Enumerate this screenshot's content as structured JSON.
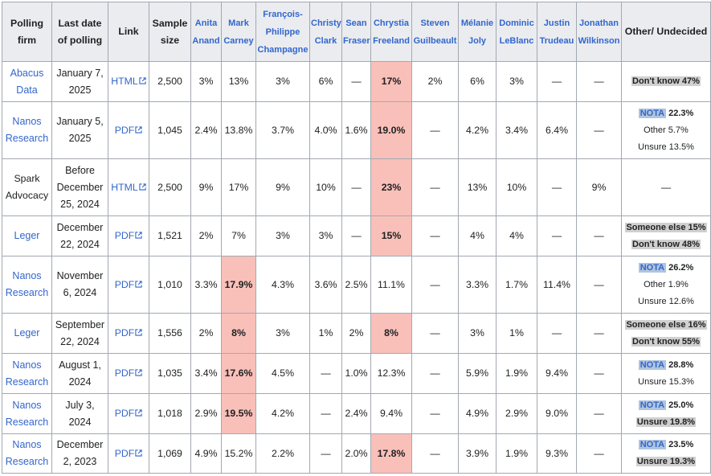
{
  "headers": {
    "firm": "Polling firm",
    "date": "Last date of polling",
    "link": "Link",
    "sample": "Sample size",
    "other": "Other/ Undecided",
    "candidates": [
      "Anita Anand",
      "Mark Carney",
      "François-Philippe Champagne",
      "Christy Clark",
      "Sean Fraser",
      "Chrystia Freeland",
      "Steven Guilbeault",
      "Mélanie Joly",
      "Dominic LeBlanc",
      "Justin Trudeau",
      "Jonathan Wilkinson"
    ]
  },
  "colors": {
    "highlight": "#f9c0b9",
    "header": "#eaecf0",
    "link": "#3366cc",
    "border": "#a2a9b1",
    "nota_bg": "#b0c4de",
    "grey_bg": "#d0d0d0"
  },
  "icons": {
    "external_link": "external-link-icon"
  },
  "rows": [
    {
      "firm": "Abacus Data",
      "firm_link": true,
      "date": "January 7, 2025",
      "link": "HTML",
      "sample": "2,500",
      "values": [
        "3%",
        "13%",
        "3%",
        "6%",
        "—",
        "17%",
        "2%",
        "6%",
        "3%",
        "—",
        "—"
      ],
      "hi": [
        5
      ],
      "other": [
        {
          "text": "Don't know 47%",
          "style": "grey-bold"
        }
      ]
    },
    {
      "firm": "Nanos Research",
      "firm_link": true,
      "date": "January 5, 2025",
      "link": "PDF",
      "sample": "1,045",
      "values": [
        "2.4%",
        "13.8%",
        "3.7%",
        "4.0%",
        "1.6%",
        "19.0%",
        "—",
        "4.2%",
        "3.4%",
        "6.4%",
        "—"
      ],
      "hi": [
        5
      ],
      "other": [
        {
          "label": "NOTA",
          "value": "22.3%",
          "style": "nota"
        },
        {
          "text": "Other 5.7%",
          "style": "plain"
        },
        {
          "text": "Unsure 13.5%",
          "style": "plain"
        }
      ]
    },
    {
      "firm": "Spark Advocacy",
      "firm_link": false,
      "date": "Before December 25, 2024",
      "link": "HTML",
      "sample": "2,500",
      "values": [
        "9%",
        "17%",
        "9%",
        "10%",
        "—",
        "23%",
        "—",
        "13%",
        "10%",
        "—",
        "9%"
      ],
      "hi": [
        5
      ],
      "other": [
        {
          "text": "—",
          "style": "plain-big"
        }
      ]
    },
    {
      "firm": "Leger",
      "firm_link": true,
      "date": "December 22, 2024",
      "link": "PDF",
      "sample": "1,521",
      "values": [
        "2%",
        "7%",
        "3%",
        "3%",
        "—",
        "15%",
        "—",
        "4%",
        "4%",
        "—",
        "—"
      ],
      "hi": [
        5
      ],
      "other": [
        {
          "text": "Someone else 15%",
          "style": "grey-bold"
        },
        {
          "text": "Don't know 48%",
          "style": "grey-bold"
        }
      ]
    },
    {
      "firm": "Nanos Research",
      "firm_link": true,
      "date": "November 6, 2024",
      "link": "PDF",
      "sample": "1,010",
      "values": [
        "3.3%",
        "17.9%",
        "4.3%",
        "3.6%",
        "2.5%",
        "11.1%",
        "—",
        "3.3%",
        "1.7%",
        "11.4%",
        "—"
      ],
      "hi": [
        1
      ],
      "other": [
        {
          "label": "NOTA",
          "value": "26.2%",
          "style": "nota"
        },
        {
          "text": "Other 1.9%",
          "style": "plain"
        },
        {
          "text": "Unsure 12.6%",
          "style": "plain"
        }
      ]
    },
    {
      "firm": "Leger",
      "firm_link": true,
      "date": "September 22, 2024",
      "link": "PDF",
      "sample": "1,556",
      "values": [
        "2%",
        "8%",
        "3%",
        "1%",
        "2%",
        "8%",
        "—",
        "3%",
        "1%",
        "—",
        "—"
      ],
      "hi": [
        1,
        5
      ],
      "other": [
        {
          "text": "Someone else 16%",
          "style": "grey-bold"
        },
        {
          "text": "Don't know 55%",
          "style": "grey-bold"
        }
      ]
    },
    {
      "firm": "Nanos Research",
      "firm_link": true,
      "date": "August 1, 2024",
      "link": "PDF",
      "sample": "1,035",
      "values": [
        "3.4%",
        "17.6%",
        "4.5%",
        "—",
        "1.0%",
        "12.3%",
        "—",
        "5.9%",
        "1.9%",
        "9.4%",
        "—"
      ],
      "hi": [
        1
      ],
      "other": [
        {
          "label": "NOTA",
          "value": "28.8%",
          "style": "nota"
        },
        {
          "text": "Unsure 15.3%",
          "style": "plain"
        }
      ]
    },
    {
      "firm": "Nanos Research",
      "firm_link": true,
      "date": "July 3, 2024",
      "link": "PDF",
      "sample": "1,018",
      "values": [
        "2.9%",
        "19.5%",
        "4.2%",
        "—",
        "2.4%",
        "9.4%",
        "—",
        "4.9%",
        "2.9%",
        "9.0%",
        "—"
      ],
      "hi": [
        1
      ],
      "other": [
        {
          "label": "NOTA",
          "value": "25.0%",
          "style": "nota"
        },
        {
          "text": "Unsure 19.8%",
          "style": "grey-bold"
        }
      ]
    },
    {
      "firm": "Nanos Research",
      "firm_link": true,
      "date": "December 2, 2023",
      "link": "PDF",
      "sample": "1,069",
      "values": [
        "4.9%",
        "15.2%",
        "2.2%",
        "—",
        "2.0%",
        "17.8%",
        "—",
        "3.9%",
        "1.9%",
        "9.3%",
        "—"
      ],
      "hi": [
        5
      ],
      "other": [
        {
          "label": "NOTA",
          "value": "23.5%",
          "style": "nota"
        },
        {
          "text": "Unsure 19.3%",
          "style": "grey-bold"
        }
      ]
    }
  ]
}
